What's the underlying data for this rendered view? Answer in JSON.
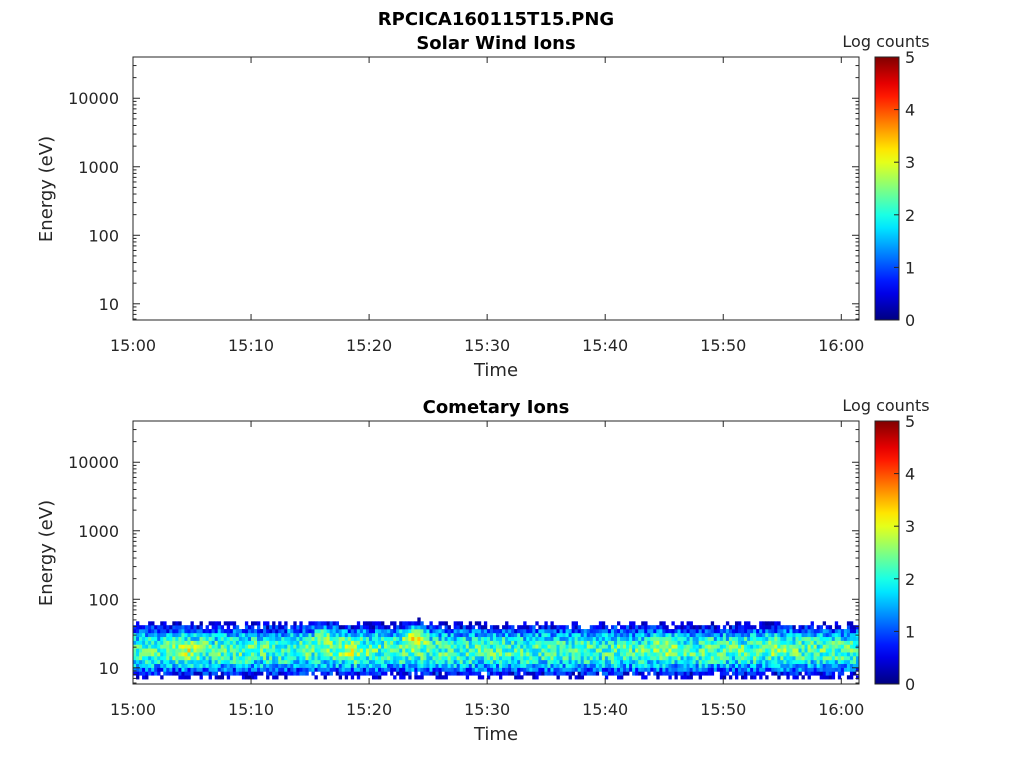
{
  "figure": {
    "filename_title": "RPCICA160115T15.PNG"
  },
  "colormap": "jet",
  "chart_data": [
    {
      "type": "heatmap",
      "title": "Solar Wind Ions",
      "xlabel": "Time",
      "ylabel": "Energy (eV)",
      "x_ticks": [
        "15:00",
        "15:10",
        "15:20",
        "15:30",
        "15:40",
        "15:50",
        "16:00"
      ],
      "xlim_minutes": [
        0,
        61.5
      ],
      "y_ticks": [
        "10",
        "100",
        "1000",
        "10000"
      ],
      "ylim": [
        5.8,
        40000
      ],
      "y_scale": "log",
      "colorbar": {
        "label": "Log counts",
        "ticks": [
          "0",
          "1",
          "2",
          "3",
          "4",
          "5"
        ],
        "range": [
          0,
          5
        ]
      },
      "data_present": false
    },
    {
      "type": "heatmap",
      "title": "Cometary Ions",
      "xlabel": "Time",
      "ylabel": "Energy (eV)",
      "x_ticks": [
        "15:00",
        "15:10",
        "15:20",
        "15:30",
        "15:40",
        "15:50",
        "16:00"
      ],
      "xlim_minutes": [
        0,
        61.5
      ],
      "y_ticks": [
        "10",
        "100",
        "1000",
        "10000"
      ],
      "ylim": [
        5.8,
        40000
      ],
      "y_scale": "log",
      "colorbar": {
        "label": "Log counts",
        "ticks": [
          "0",
          "1",
          "2",
          "3",
          "4",
          "5"
        ],
        "range": [
          0,
          5
        ]
      },
      "data_present": true,
      "energy_band_ev": [
        6,
        80
      ],
      "peak_energy_ev": 18,
      "typical_log_counts": 2.2,
      "hotspots": [
        {
          "time_min": 4.5,
          "energy_ev": 18,
          "log_counts": 2.9
        },
        {
          "time_min": 16.3,
          "energy_ev": 35,
          "log_counts": 3.1
        },
        {
          "time_min": 23.8,
          "energy_ev": 32,
          "log_counts": 3.6
        },
        {
          "time_min": 18.5,
          "energy_ev": 18,
          "log_counts": 2.8
        },
        {
          "time_min": 45.0,
          "energy_ev": 20,
          "log_counts": 2.6
        },
        {
          "time_min": 54.5,
          "energy_ev": 22,
          "log_counts": 2.6
        }
      ]
    }
  ]
}
